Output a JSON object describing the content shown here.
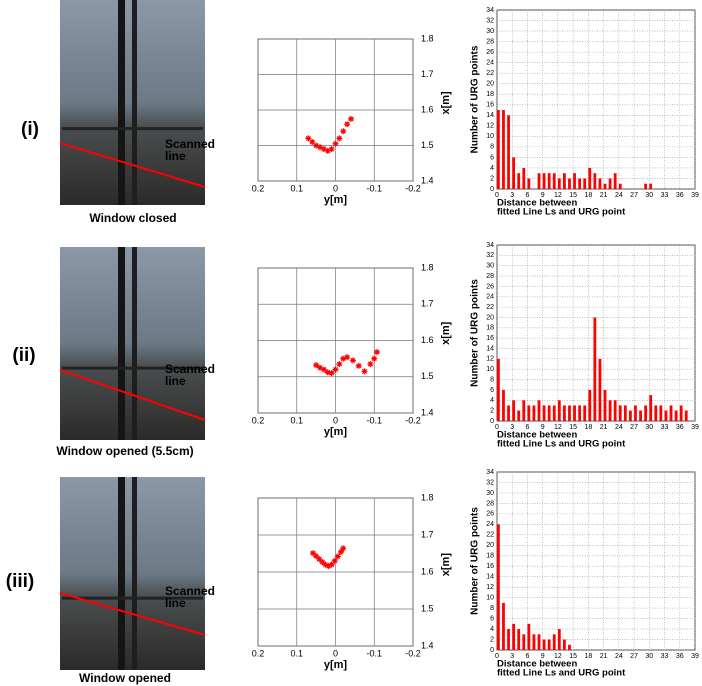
{
  "photos": [
    {
      "label": "(i)",
      "annotation": [
        "Scanned",
        "line"
      ],
      "caption": "Window closed"
    },
    {
      "label": "(ii)",
      "annotation": [
        "Scanned",
        "line"
      ],
      "caption": "Window opened (5.5cm)"
    },
    {
      "label": "(iii)",
      "annotation": [
        "Scanned",
        "line"
      ],
      "caption": "Window opened"
    }
  ],
  "chart_data": [
    {
      "type": "scatter",
      "x_label": "y[m]",
      "y_label": "x[m]",
      "color": "#ff0000",
      "x": [
        0.07,
        0.06,
        0.05,
        0.04,
        0.03,
        0.02,
        0.01,
        0.0,
        -0.01,
        -0.02,
        -0.03,
        -0.04
      ],
      "values": [
        1.52,
        1.51,
        1.5,
        1.495,
        1.49,
        1.485,
        1.49,
        1.505,
        1.52,
        1.54,
        1.56,
        1.575
      ],
      "xlim": [
        0.2,
        -0.2
      ],
      "ylim": [
        1.4,
        1.8
      ],
      "xticks": [
        0.2,
        0.1,
        0,
        -0.1,
        -0.2
      ],
      "yticks": [
        1.4,
        1.5,
        1.6,
        1.7,
        1.8
      ],
      "grid": true
    },
    {
      "type": "bar",
      "x_label": [
        "Distance between",
        "fitted Line Ls and URG point"
      ],
      "y_label": "Number of URG points",
      "color": "#ff0000",
      "x": [
        0,
        1,
        2,
        3,
        4,
        5,
        6,
        7,
        8,
        9,
        10,
        11,
        12,
        13,
        14,
        15,
        16,
        17,
        18,
        19,
        20,
        21,
        22,
        23,
        24,
        25,
        26,
        27,
        28,
        29,
        30
      ],
      "values": [
        15,
        15,
        14,
        6,
        3,
        4,
        2,
        0,
        3,
        3,
        3,
        3,
        2,
        3,
        2,
        3,
        2,
        2,
        4,
        3,
        2,
        1,
        2,
        3,
        1,
        0,
        0,
        0,
        0,
        1,
        1
      ],
      "xlim": [
        0,
        39
      ],
      "ylim": [
        0,
        34
      ],
      "xticks": [
        0,
        3,
        6,
        9,
        12,
        15,
        18,
        21,
        24,
        27,
        30,
        33,
        36,
        39
      ],
      "yticks": [
        0,
        2,
        4,
        6,
        8,
        10,
        12,
        14,
        16,
        18,
        20,
        22,
        24,
        26,
        28,
        30,
        32,
        34
      ],
      "grid": true
    },
    {
      "type": "scatter",
      "x_label": "y[m]",
      "y_label": "x[m]",
      "color": "#ff0000",
      "x": [
        0.05,
        0.04,
        0.03,
        0.02,
        0.01,
        0.0,
        -0.01,
        -0.02,
        -0.03,
        -0.045,
        -0.06,
        -0.075,
        -0.09,
        -0.1,
        -0.107
      ],
      "values": [
        1.532,
        1.525,
        1.52,
        1.512,
        1.51,
        1.52,
        1.535,
        1.55,
        1.554,
        1.545,
        1.53,
        1.515,
        1.535,
        1.55,
        1.568
      ],
      "xlim": [
        0.2,
        -0.2
      ],
      "ylim": [
        1.4,
        1.8
      ],
      "xticks": [
        0.2,
        0.1,
        0,
        -0.1,
        -0.2
      ],
      "yticks": [
        1.4,
        1.5,
        1.6,
        1.7,
        1.8
      ],
      "grid": true
    },
    {
      "type": "bar",
      "x_label": [
        "Distance between",
        "fitted Line Ls and URG point"
      ],
      "y_label": "Number of URG points",
      "color": "#ff0000",
      "x": [
        0,
        1,
        2,
        3,
        4,
        5,
        6,
        7,
        8,
        9,
        10,
        11,
        12,
        13,
        14,
        15,
        16,
        17,
        18,
        19,
        20,
        21,
        22,
        23,
        24,
        25,
        26,
        27,
        28,
        29,
        30,
        31,
        32,
        33,
        34,
        35,
        36,
        37
      ],
      "values": [
        12,
        6,
        3,
        4,
        2,
        4,
        3,
        3,
        4,
        3,
        3,
        3,
        4,
        3,
        3,
        3,
        3,
        3,
        6,
        20,
        12,
        6,
        4,
        4,
        3,
        3,
        2,
        3,
        2,
        3,
        5,
        3,
        3,
        2,
        3,
        2,
        3,
        2
      ],
      "xlim": [
        0,
        39
      ],
      "ylim": [
        0,
        34
      ],
      "xticks": [
        0,
        3,
        6,
        9,
        12,
        15,
        18,
        21,
        24,
        27,
        30,
        33,
        36,
        39
      ],
      "yticks": [
        0,
        2,
        4,
        6,
        8,
        10,
        12,
        14,
        16,
        18,
        20,
        22,
        24,
        26,
        28,
        30,
        32,
        34
      ],
      "grid": true
    },
    {
      "type": "scatter",
      "x_label": "y[m]",
      "y_label": "x[m]",
      "color": "#ff0000",
      "x": [
        0.058,
        0.05,
        0.042,
        0.034,
        0.026,
        0.018,
        0.01,
        0.002,
        -0.006,
        -0.014,
        -0.02
      ],
      "values": [
        1.651,
        1.643,
        1.635,
        1.627,
        1.62,
        1.616,
        1.62,
        1.63,
        1.642,
        1.654,
        1.664
      ],
      "xlim": [
        0.2,
        -0.2
      ],
      "ylim": [
        1.4,
        1.8
      ],
      "xticks": [
        0.2,
        0.1,
        0,
        -0.1,
        -0.2
      ],
      "yticks": [
        1.4,
        1.5,
        1.6,
        1.7,
        1.8
      ],
      "grid": true
    },
    {
      "type": "bar",
      "x_label": [
        "Distance between",
        "fitted Line Ls and URG point"
      ],
      "y_label": "Number of URG points",
      "color": "#ff0000",
      "x": [
        0,
        1,
        2,
        3,
        4,
        5,
        6,
        7,
        8,
        9,
        10,
        11,
        12,
        13,
        14
      ],
      "values": [
        24,
        9,
        4,
        5,
        4,
        3,
        5,
        3,
        3,
        2,
        2,
        3,
        4,
        2,
        1
      ],
      "xlim": [
        0,
        39
      ],
      "ylim": [
        0,
        34
      ],
      "xticks": [
        0,
        3,
        6,
        9,
        12,
        15,
        18,
        21,
        24,
        27,
        30,
        33,
        36,
        39
      ],
      "yticks": [
        0,
        2,
        4,
        6,
        8,
        10,
        12,
        14,
        16,
        18,
        20,
        22,
        24,
        26,
        28,
        30,
        32,
        34
      ],
      "grid": true
    }
  ]
}
